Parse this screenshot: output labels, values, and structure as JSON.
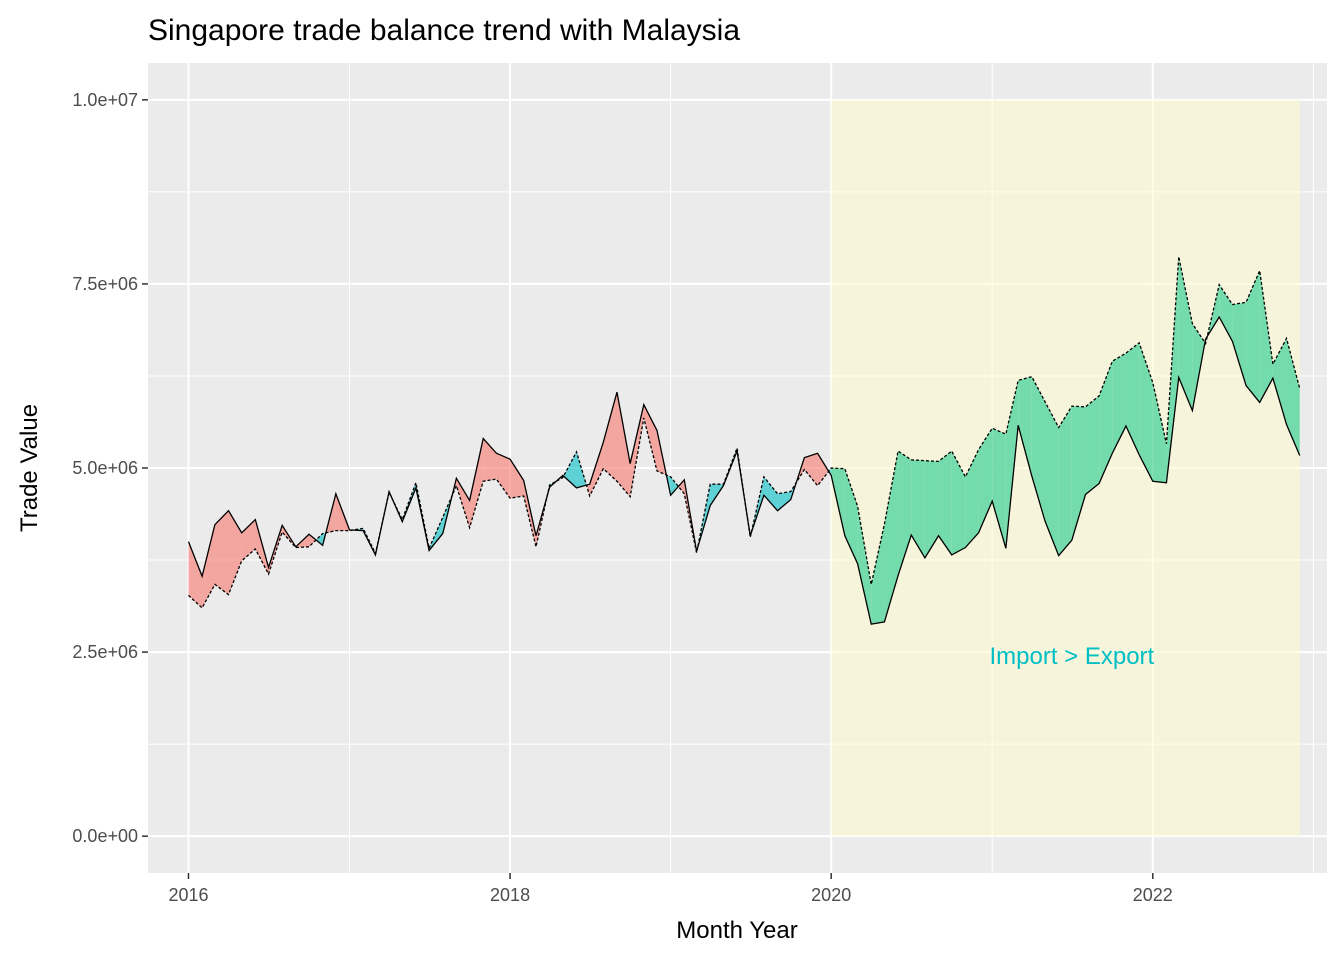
{
  "chart_data": {
    "type": "area",
    "title": "Singapore trade balance trend with Malaysia",
    "xlabel": "Month Year",
    "ylabel": "Trade Value",
    "x_tick_labels": [
      "2016",
      "2018",
      "2020",
      "2022"
    ],
    "y_tick_labels": [
      "0.0e+00",
      "2.5e+06",
      "5.0e+06",
      "7.5e+06",
      "1.0e+07"
    ],
    "xlim": [
      "2015-10-01",
      "2023-02-01"
    ],
    "ylim": [
      -500000,
      10500000
    ],
    "grid": true,
    "colors": {
      "panel_bg": "#ebebeb",
      "grid": "#ffffff",
      "export_gt_import": "#f8766d",
      "import_gt_export": "#00bfc4",
      "highlight_fill": "#66d9a6",
      "highlight_region": "#fffdd0"
    },
    "highlight": {
      "start": "2020-01-01",
      "end": "2022-12-01",
      "y_from": 0,
      "y_to": 10000000,
      "annotation": "Import > Export",
      "annotation_x": "2021-07-01",
      "annotation_y": 2450000
    },
    "series": [
      {
        "line_style": "solid",
        "points": [
          [
            "2016-01-01",
            4000000
          ],
          [
            "2016-02-01",
            3530000
          ],
          [
            "2016-03-01",
            4230000
          ],
          [
            "2016-04-01",
            4420000
          ],
          [
            "2016-05-01",
            4120000
          ],
          [
            "2016-06-01",
            4300000
          ],
          [
            "2016-07-01",
            3650000
          ],
          [
            "2016-08-01",
            4220000
          ],
          [
            "2016-09-01",
            3930000
          ],
          [
            "2016-10-01",
            4100000
          ],
          [
            "2016-11-01",
            3950000
          ],
          [
            "2016-12-01",
            4650000
          ],
          [
            "2017-01-01",
            4160000
          ],
          [
            "2017-02-01",
            4150000
          ],
          [
            "2017-03-01",
            3820000
          ],
          [
            "2017-04-01",
            4680000
          ],
          [
            "2017-05-01",
            4270000
          ],
          [
            "2017-06-01",
            4730000
          ],
          [
            "2017-07-01",
            3880000
          ],
          [
            "2017-08-01",
            4110000
          ],
          [
            "2017-09-01",
            4860000
          ],
          [
            "2017-10-01",
            4560000
          ],
          [
            "2017-11-01",
            5400000
          ],
          [
            "2017-12-01",
            5200000
          ],
          [
            "2018-01-01",
            5120000
          ],
          [
            "2018-02-01",
            4830000
          ],
          [
            "2018-03-01",
            4080000
          ],
          [
            "2018-04-01",
            4740000
          ],
          [
            "2018-05-01",
            4900000
          ],
          [
            "2018-06-01",
            4730000
          ],
          [
            "2018-07-01",
            4780000
          ],
          [
            "2018-08-01",
            5350000
          ],
          [
            "2018-09-01",
            6030000
          ],
          [
            "2018-10-01",
            5060000
          ],
          [
            "2018-11-01",
            5860000
          ],
          [
            "2018-12-01",
            5510000
          ],
          [
            "2019-01-01",
            4630000
          ],
          [
            "2019-02-01",
            4840000
          ],
          [
            "2019-03-01",
            3870000
          ],
          [
            "2019-04-01",
            4490000
          ],
          [
            "2019-05-01",
            4760000
          ],
          [
            "2019-06-01",
            5230000
          ],
          [
            "2019-07-01",
            4080000
          ],
          [
            "2019-08-01",
            4630000
          ],
          [
            "2019-09-01",
            4420000
          ],
          [
            "2019-10-01",
            4570000
          ],
          [
            "2019-11-01",
            5140000
          ],
          [
            "2019-12-01",
            5200000
          ],
          [
            "2020-01-01",
            4900000
          ],
          [
            "2020-02-01",
            4080000
          ],
          [
            "2020-03-01",
            3700000
          ],
          [
            "2020-04-01",
            2880000
          ],
          [
            "2020-05-01",
            2910000
          ],
          [
            "2020-06-01",
            3540000
          ],
          [
            "2020-07-01",
            4090000
          ],
          [
            "2020-08-01",
            3780000
          ],
          [
            "2020-09-01",
            4080000
          ],
          [
            "2020-10-01",
            3820000
          ],
          [
            "2020-11-01",
            3920000
          ],
          [
            "2020-12-01",
            4120000
          ],
          [
            "2021-01-01",
            4550000
          ],
          [
            "2021-02-01",
            3910000
          ],
          [
            "2021-03-01",
            5580000
          ],
          [
            "2021-04-01",
            4890000
          ],
          [
            "2021-05-01",
            4280000
          ],
          [
            "2021-06-01",
            3810000
          ],
          [
            "2021-07-01",
            4020000
          ],
          [
            "2021-08-01",
            4640000
          ],
          [
            "2021-09-01",
            4790000
          ],
          [
            "2021-10-01",
            5200000
          ],
          [
            "2021-11-01",
            5570000
          ],
          [
            "2021-12-01",
            5180000
          ],
          [
            "2022-01-01",
            4820000
          ],
          [
            "2022-02-01",
            4800000
          ],
          [
            "2022-03-01",
            6230000
          ],
          [
            "2022-04-01",
            5780000
          ],
          [
            "2022-05-01",
            6750000
          ],
          [
            "2022-06-01",
            7050000
          ],
          [
            "2022-07-01",
            6720000
          ],
          [
            "2022-08-01",
            6120000
          ],
          [
            "2022-09-01",
            5890000
          ],
          [
            "2022-10-01",
            6220000
          ],
          [
            "2022-11-01",
            5590000
          ],
          [
            "2022-12-01",
            5170000
          ]
        ]
      },
      {
        "line_style": "dashed",
        "points": [
          [
            "2016-01-01",
            3270000
          ],
          [
            "2016-02-01",
            3100000
          ],
          [
            "2016-03-01",
            3420000
          ],
          [
            "2016-04-01",
            3280000
          ],
          [
            "2016-05-01",
            3740000
          ],
          [
            "2016-06-01",
            3900000
          ],
          [
            "2016-07-01",
            3560000
          ],
          [
            "2016-08-01",
            4130000
          ],
          [
            "2016-09-01",
            3920000
          ],
          [
            "2016-10-01",
            3930000
          ],
          [
            "2016-11-01",
            4110000
          ],
          [
            "2016-12-01",
            4150000
          ],
          [
            "2017-01-01",
            4150000
          ],
          [
            "2017-02-01",
            4180000
          ],
          [
            "2017-03-01",
            3840000
          ],
          [
            "2017-04-01",
            4670000
          ],
          [
            "2017-05-01",
            4300000
          ],
          [
            "2017-06-01",
            4800000
          ],
          [
            "2017-07-01",
            3910000
          ],
          [
            "2017-08-01",
            4330000
          ],
          [
            "2017-09-01",
            4760000
          ],
          [
            "2017-10-01",
            4190000
          ],
          [
            "2017-11-01",
            4820000
          ],
          [
            "2017-12-01",
            4850000
          ],
          [
            "2018-01-01",
            4590000
          ],
          [
            "2018-02-01",
            4620000
          ],
          [
            "2018-03-01",
            3930000
          ],
          [
            "2018-04-01",
            4770000
          ],
          [
            "2018-05-01",
            4870000
          ],
          [
            "2018-06-01",
            5220000
          ],
          [
            "2018-07-01",
            4620000
          ],
          [
            "2018-08-01",
            4990000
          ],
          [
            "2018-09-01",
            4820000
          ],
          [
            "2018-10-01",
            4610000
          ],
          [
            "2018-11-01",
            5680000
          ],
          [
            "2018-12-01",
            4960000
          ],
          [
            "2019-01-01",
            4880000
          ],
          [
            "2019-02-01",
            4650000
          ],
          [
            "2019-03-01",
            3850000
          ],
          [
            "2019-04-01",
            4780000
          ],
          [
            "2019-05-01",
            4780000
          ],
          [
            "2019-06-01",
            5270000
          ],
          [
            "2019-07-01",
            4060000
          ],
          [
            "2019-08-01",
            4880000
          ],
          [
            "2019-09-01",
            4650000
          ],
          [
            "2019-10-01",
            4680000
          ],
          [
            "2019-11-01",
            4980000
          ],
          [
            "2019-12-01",
            4760000
          ],
          [
            "2020-01-01",
            5000000
          ],
          [
            "2020-02-01",
            4990000
          ],
          [
            "2020-03-01",
            4480000
          ],
          [
            "2020-04-01",
            3420000
          ],
          [
            "2020-05-01",
            4240000
          ],
          [
            "2020-06-01",
            5230000
          ],
          [
            "2020-07-01",
            5110000
          ],
          [
            "2020-08-01",
            5100000
          ],
          [
            "2020-09-01",
            5090000
          ],
          [
            "2020-10-01",
            5230000
          ],
          [
            "2020-11-01",
            4880000
          ],
          [
            "2020-12-01",
            5250000
          ],
          [
            "2021-01-01",
            5540000
          ],
          [
            "2021-02-01",
            5460000
          ],
          [
            "2021-03-01",
            6190000
          ],
          [
            "2021-04-01",
            6240000
          ],
          [
            "2021-05-01",
            5900000
          ],
          [
            "2021-06-01",
            5550000
          ],
          [
            "2021-07-01",
            5840000
          ],
          [
            "2021-08-01",
            5830000
          ],
          [
            "2021-09-01",
            5980000
          ],
          [
            "2021-10-01",
            6450000
          ],
          [
            "2021-11-01",
            6560000
          ],
          [
            "2021-12-01",
            6700000
          ],
          [
            "2022-01-01",
            6160000
          ],
          [
            "2022-02-01",
            5330000
          ],
          [
            "2022-03-01",
            7870000
          ],
          [
            "2022-04-01",
            6960000
          ],
          [
            "2022-05-01",
            6690000
          ],
          [
            "2022-06-01",
            7490000
          ],
          [
            "2022-07-01",
            7220000
          ],
          [
            "2022-08-01",
            7250000
          ],
          [
            "2022-09-01",
            7680000
          ],
          [
            "2022-10-01",
            6410000
          ],
          [
            "2022-11-01",
            6760000
          ],
          [
            "2022-12-01",
            6080000
          ]
        ]
      }
    ]
  }
}
